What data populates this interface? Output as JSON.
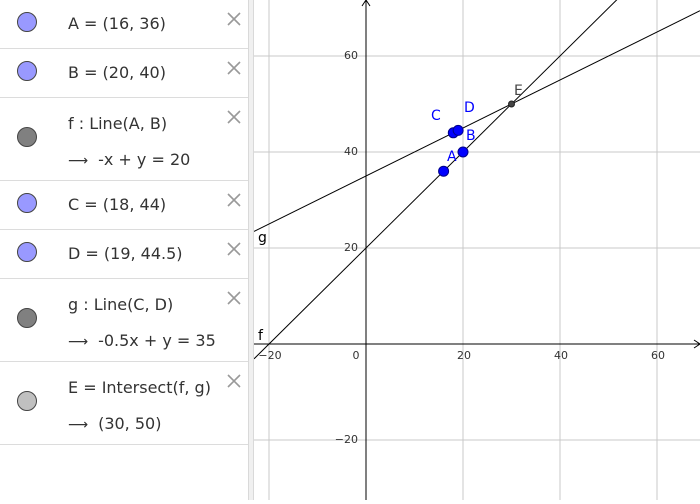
{
  "algebra": {
    "rows": [
      {
        "line": "A = (16, 36)",
        "marble_color": "#9999ff"
      },
      {
        "line": "B = (20, 40)",
        "marble_color": "#9999ff"
      },
      {
        "line": "f : Line(A, B)",
        "value": "-x + y = 20",
        "marble_color": "#808080"
      },
      {
        "line": "C = (18, 44)",
        "marble_color": "#9999ff"
      },
      {
        "line": "D = (19, 44.5)",
        "marble_color": "#9999ff"
      },
      {
        "line": "g : Line(C, D)",
        "value": "-0.5x + y = 35",
        "marble_color": "#808080"
      },
      {
        "line": "E = Intersect(f, g)",
        "value": "(30, 50)",
        "marble_color": "#c0c0c0"
      }
    ]
  },
  "graphics": {
    "x_ticks": [
      "−20",
      "0",
      "20",
      "40",
      "60"
    ],
    "y_ticks": [
      "60",
      "40",
      "20",
      "−20"
    ],
    "points": [
      {
        "label": "A",
        "x": 16,
        "y": 36,
        "color": "#0000ff"
      },
      {
        "label": "B",
        "x": 20,
        "y": 40,
        "color": "#0000ff"
      },
      {
        "label": "C",
        "x": 18,
        "y": 44,
        "color": "#0000ff"
      },
      {
        "label": "D",
        "x": 19,
        "y": 44.5,
        "color": "#0000ff"
      },
      {
        "label": "E",
        "x": 30,
        "y": 50,
        "color": "#444444"
      }
    ],
    "lines": [
      {
        "label": "f",
        "slope": 1,
        "intercept": 20
      },
      {
        "label": "g",
        "slope": 0.5,
        "intercept": 35
      }
    ]
  }
}
